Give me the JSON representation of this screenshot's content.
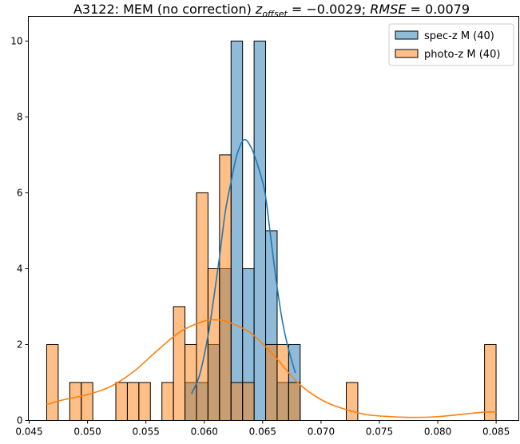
{
  "chart_data": {
    "type": "bar",
    "title": {
      "prefix": "A3122: MEM (no correction) ",
      "z_sym": "z",
      "z_sub": "offset",
      "z_val": " = −0.0029; ",
      "rmse_sym": "RMSE",
      "rmse_val": " = 0.0079"
    },
    "xlabel": "",
    "ylabel": "",
    "xlim": [
      0.04493,
      0.08694
    ],
    "ylim": [
      0,
      10.65
    ],
    "xticks": [
      "0.045",
      "0.050",
      "0.055",
      "0.060",
      "0.065",
      "0.070",
      "0.075",
      "0.080",
      "0.085"
    ],
    "xtick_values": [
      0.045,
      0.05,
      0.055,
      0.06,
      0.065,
      0.07,
      0.075,
      0.08,
      0.085
    ],
    "yticks": [
      "0",
      "2",
      "4",
      "6",
      "8",
      "10"
    ],
    "ytick_values": [
      0,
      2,
      4,
      6,
      8,
      10
    ],
    "bin_start": 0.0465,
    "bin_width": 0.000987,
    "legend_position": "top-right",
    "series": [
      {
        "name": "spec-z M (40)",
        "color": "#1f77b4",
        "bins": {
          "12": 1,
          "13": 1,
          "14": 2,
          "15": 4,
          "16": 10,
          "17": 4,
          "18": 10,
          "19": 5,
          "20": 1,
          "21": 2
        },
        "kde": [
          [
            0.0589,
            0.7
          ],
          [
            0.0596,
            1.2
          ],
          [
            0.0603,
            2.2
          ],
          [
            0.0608,
            3.2
          ],
          [
            0.0613,
            4.3
          ],
          [
            0.0618,
            5.5
          ],
          [
            0.0623,
            6.3
          ],
          [
            0.0628,
            7.0
          ],
          [
            0.0634,
            7.4
          ],
          [
            0.064,
            7.2
          ],
          [
            0.0646,
            6.7
          ],
          [
            0.0652,
            6.0
          ],
          [
            0.0657,
            4.8
          ],
          [
            0.0662,
            3.6
          ],
          [
            0.0667,
            2.6
          ],
          [
            0.0672,
            1.9
          ],
          [
            0.0678,
            1.25
          ]
        ]
      },
      {
        "name": "photo-z M (40)",
        "color": "#ff7f0e",
        "bins": {
          "0": 2,
          "2": 1,
          "3": 1,
          "6": 1,
          "7": 1,
          "8": 1,
          "10": 1,
          "11": 3,
          "12": 2,
          "13": 6,
          "14": 4,
          "15": 7,
          "16": 1,
          "17": 1,
          "19": 2,
          "20": 2,
          "21": 1,
          "26": 1,
          "38": 2
        },
        "kde": [
          [
            0.0465,
            0.42
          ],
          [
            0.048,
            0.55
          ],
          [
            0.05,
            0.68
          ],
          [
            0.052,
            0.9
          ],
          [
            0.054,
            1.3
          ],
          [
            0.056,
            1.85
          ],
          [
            0.058,
            2.35
          ],
          [
            0.06,
            2.62
          ],
          [
            0.061,
            2.65
          ],
          [
            0.062,
            2.6
          ],
          [
            0.064,
            2.3
          ],
          [
            0.066,
            1.7
          ],
          [
            0.068,
            1.0
          ],
          [
            0.07,
            0.55
          ],
          [
            0.072,
            0.3
          ],
          [
            0.074,
            0.15
          ],
          [
            0.076,
            0.1
          ],
          [
            0.078,
            0.08
          ],
          [
            0.08,
            0.1
          ],
          [
            0.082,
            0.16
          ],
          [
            0.084,
            0.22
          ],
          [
            0.085,
            0.22
          ]
        ]
      }
    ]
  }
}
